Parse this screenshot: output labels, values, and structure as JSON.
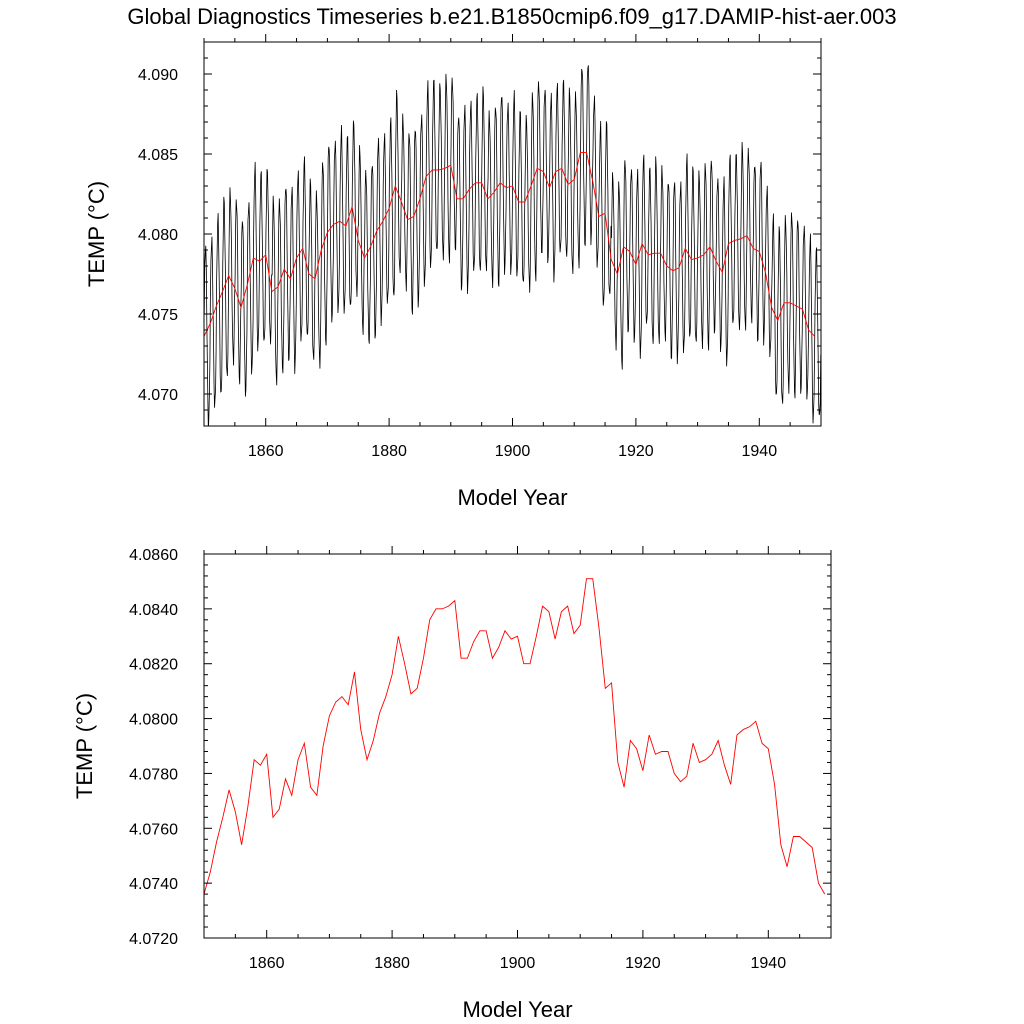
{
  "page": {
    "title": "Global Diagnostics Timeseries b.e21.B1850cmip6.f09_g17.DAMIP-hist-aer.003"
  },
  "colors": {
    "monthly_series": "#000000",
    "annual_series": "#ff0000",
    "axes": "#000000"
  },
  "chart_data": [
    {
      "type": "line",
      "title": "",
      "xlabel": "Model Year",
      "ylabel": "TEMP (°C)",
      "xlim": [
        1850,
        1950
      ],
      "ylim": [
        4.068,
        4.092
      ],
      "xticks": [
        1860,
        1880,
        1900,
        1920,
        1940
      ],
      "xtick_labels": [
        "1860",
        "1880",
        "1900",
        "1920",
        "1940"
      ],
      "yticks": [
        4.07,
        4.075,
        4.08,
        4.085,
        4.09
      ],
      "ytick_labels": [
        "4.070",
        "4.075",
        "4.080",
        "4.085",
        "4.090"
      ],
      "grid": false,
      "legend": "none",
      "series": [
        {
          "style": "monthly",
          "color": "#000000",
          "seasonal_amplitude": 0.0055,
          "x_start": 1850.0417,
          "x_step": 0.0833333,
          "values_source": "annual"
        },
        {
          "style": "annual",
          "color": "#ff0000",
          "x": [
            1850,
            1851,
            1852,
            1853,
            1854,
            1855,
            1856,
            1857,
            1858,
            1859,
            1860,
            1861,
            1862,
            1863,
            1864,
            1865,
            1866,
            1867,
            1868,
            1869,
            1870,
            1871,
            1872,
            1873,
            1874,
            1875,
            1876,
            1877,
            1878,
            1879,
            1880,
            1881,
            1882,
            1883,
            1884,
            1885,
            1886,
            1887,
            1888,
            1889,
            1890,
            1891,
            1892,
            1893,
            1894,
            1895,
            1896,
            1897,
            1898,
            1899,
            1900,
            1901,
            1902,
            1903,
            1904,
            1905,
            1906,
            1907,
            1908,
            1909,
            1910,
            1911,
            1912,
            1913,
            1914,
            1915,
            1916,
            1917,
            1918,
            1919,
            1920,
            1921,
            1922,
            1923,
            1924,
            1925,
            1926,
            1927,
            1928,
            1929,
            1930,
            1931,
            1932,
            1933,
            1934,
            1935,
            1936,
            1937,
            1938,
            1939,
            1940,
            1941,
            1942,
            1943,
            1944,
            1945,
            1946,
            1947,
            1948,
            1949
          ],
          "values": [
            4.0736,
            4.0744,
            4.0755,
            4.0764,
            4.0774,
            4.0766,
            4.0754,
            4.0768,
            4.0785,
            4.0783,
            4.0787,
            4.0764,
            4.0767,
            4.0778,
            4.0772,
            4.0785,
            4.0791,
            4.0775,
            4.0772,
            4.079,
            4.0801,
            4.0806,
            4.0808,
            4.0805,
            4.0817,
            4.0796,
            4.0785,
            4.0792,
            4.0802,
            4.0808,
            4.0816,
            4.083,
            4.082,
            4.0809,
            4.0811,
            4.0822,
            4.0836,
            4.084,
            4.084,
            4.0841,
            4.0843,
            4.0822,
            4.0822,
            4.0828,
            4.0832,
            4.0832,
            4.0822,
            4.0826,
            4.0832,
            4.0829,
            4.083,
            4.082,
            4.082,
            4.083,
            4.0841,
            4.0839,
            4.0829,
            4.0839,
            4.0841,
            4.0831,
            4.0834,
            4.0851,
            4.0851,
            4.0833,
            4.0811,
            4.0813,
            4.0784,
            4.0775,
            4.0792,
            4.0789,
            4.0781,
            4.0794,
            4.0787,
            4.0788,
            4.0788,
            4.078,
            4.0777,
            4.0779,
            4.0791,
            4.0784,
            4.0785,
            4.0787,
            4.0792,
            4.0783,
            4.0776,
            4.0794,
            4.0796,
            4.0797,
            4.0799,
            4.0791,
            4.0789,
            4.0776,
            4.0754,
            4.0746,
            4.0757,
            4.0757,
            4.0755,
            4.0753,
            4.074,
            4.0736
          ]
        }
      ]
    },
    {
      "type": "line",
      "title": "",
      "xlabel": "Model Year",
      "ylabel": "TEMP (°C)",
      "xlim": [
        1850,
        1950
      ],
      "ylim": [
        4.072,
        4.086
      ],
      "xticks": [
        1860,
        1880,
        1900,
        1920,
        1940
      ],
      "xtick_labels": [
        "1860",
        "1880",
        "1900",
        "1920",
        "1940"
      ],
      "yticks": [
        4.072,
        4.074,
        4.076,
        4.078,
        4.08,
        4.082,
        4.084,
        4.086
      ],
      "ytick_labels": [
        "4.0720",
        "4.0740",
        "4.0760",
        "4.0780",
        "4.0800",
        "4.0820",
        "4.0840",
        "4.0860"
      ],
      "grid": false,
      "legend": "none",
      "series": [
        {
          "style": "annual",
          "color": "#ff0000",
          "x": [
            1850,
            1851,
            1852,
            1853,
            1854,
            1855,
            1856,
            1857,
            1858,
            1859,
            1860,
            1861,
            1862,
            1863,
            1864,
            1865,
            1866,
            1867,
            1868,
            1869,
            1870,
            1871,
            1872,
            1873,
            1874,
            1875,
            1876,
            1877,
            1878,
            1879,
            1880,
            1881,
            1882,
            1883,
            1884,
            1885,
            1886,
            1887,
            1888,
            1889,
            1890,
            1891,
            1892,
            1893,
            1894,
            1895,
            1896,
            1897,
            1898,
            1899,
            1900,
            1901,
            1902,
            1903,
            1904,
            1905,
            1906,
            1907,
            1908,
            1909,
            1910,
            1911,
            1912,
            1913,
            1914,
            1915,
            1916,
            1917,
            1918,
            1919,
            1920,
            1921,
            1922,
            1923,
            1924,
            1925,
            1926,
            1927,
            1928,
            1929,
            1930,
            1931,
            1932,
            1933,
            1934,
            1935,
            1936,
            1937,
            1938,
            1939,
            1940,
            1941,
            1942,
            1943,
            1944,
            1945,
            1946,
            1947,
            1948,
            1949
          ],
          "values": [
            4.0736,
            4.0744,
            4.0755,
            4.0764,
            4.0774,
            4.0766,
            4.0754,
            4.0768,
            4.0785,
            4.0783,
            4.0787,
            4.0764,
            4.0767,
            4.0778,
            4.0772,
            4.0785,
            4.0791,
            4.0775,
            4.0772,
            4.079,
            4.0801,
            4.0806,
            4.0808,
            4.0805,
            4.0817,
            4.0796,
            4.0785,
            4.0792,
            4.0802,
            4.0808,
            4.0816,
            4.083,
            4.082,
            4.0809,
            4.0811,
            4.0822,
            4.0836,
            4.084,
            4.084,
            4.0841,
            4.0843,
            4.0822,
            4.0822,
            4.0828,
            4.0832,
            4.0832,
            4.0822,
            4.0826,
            4.0832,
            4.0829,
            4.083,
            4.082,
            4.082,
            4.083,
            4.0841,
            4.0839,
            4.0829,
            4.0839,
            4.0841,
            4.0831,
            4.0834,
            4.0851,
            4.0851,
            4.0833,
            4.0811,
            4.0813,
            4.0784,
            4.0775,
            4.0792,
            4.0789,
            4.0781,
            4.0794,
            4.0787,
            4.0788,
            4.0788,
            4.078,
            4.0777,
            4.0779,
            4.0791,
            4.0784,
            4.0785,
            4.0787,
            4.0792,
            4.0783,
            4.0776,
            4.0794,
            4.0796,
            4.0797,
            4.0799,
            4.0791,
            4.0789,
            4.0776,
            4.0754,
            4.0746,
            4.0757,
            4.0757,
            4.0755,
            4.0753,
            4.074,
            4.0736
          ]
        }
      ]
    }
  ]
}
